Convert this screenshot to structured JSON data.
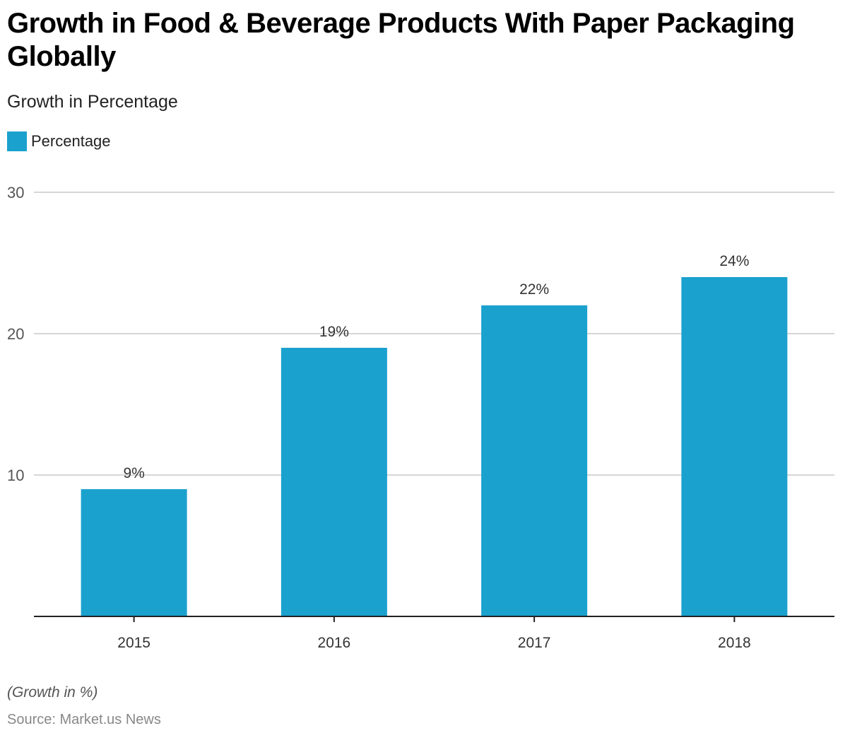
{
  "header": {
    "title": "Growth in Food & Beverage Products With Paper Packaging Globally",
    "subtitle": "Growth in Percentage"
  },
  "legend": {
    "items": [
      {
        "label": "Percentage",
        "color": "#1aa1ce"
      }
    ]
  },
  "footer": {
    "note": "(Growth in %)",
    "source": "Source: Market.us News"
  },
  "chart_data": {
    "type": "bar",
    "title": "Growth in Food & Beverage Products With Paper Packaging Globally",
    "subtitle": "Growth in Percentage",
    "categories": [
      "2015",
      "2016",
      "2017",
      "2018"
    ],
    "series": [
      {
        "name": "Percentage",
        "values": [
          9,
          19,
          22,
          24
        ],
        "color": "#1aa1ce"
      }
    ],
    "data_labels": [
      "9%",
      "19%",
      "22%",
      "24%"
    ],
    "xlabel": "",
    "ylabel": "",
    "ylim": [
      0,
      30
    ],
    "yticks": [
      10,
      20,
      30
    ],
    "grid": true,
    "legend_position": "top-left"
  }
}
